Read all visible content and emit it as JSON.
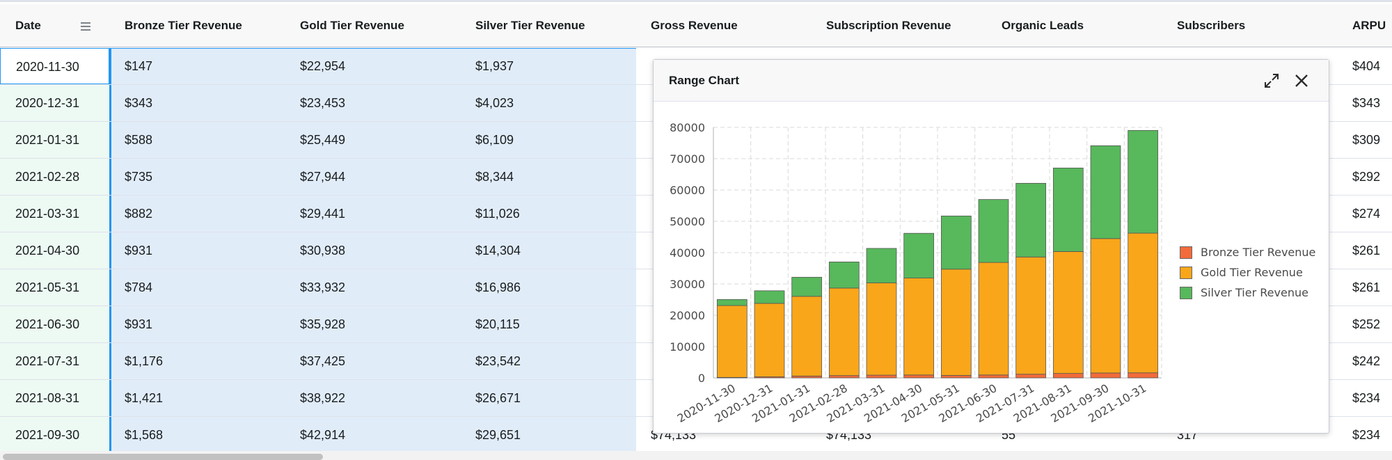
{
  "grid": {
    "columns": [
      {
        "label": "Date"
      },
      {
        "label": "Bronze Tier Revenue"
      },
      {
        "label": "Gold Tier Revenue"
      },
      {
        "label": "Silver Tier Revenue"
      },
      {
        "label": "Gross Revenue"
      },
      {
        "label": "Subscription Revenue"
      },
      {
        "label": "Organic Leads"
      },
      {
        "label": "Subscribers"
      },
      {
        "label": "ARPU"
      }
    ],
    "rows": [
      {
        "date": "2020-11-30",
        "bronze": "$147",
        "gold": "$22,954",
        "silver": "$1,937",
        "gross": "",
        "subscription": "",
        "organic": "",
        "subscribers": "",
        "arpu": "$404"
      },
      {
        "date": "2020-12-31",
        "bronze": "$343",
        "gold": "$23,453",
        "silver": "$4,023",
        "gross": "",
        "subscription": "",
        "organic": "",
        "subscribers": "",
        "arpu": "$343"
      },
      {
        "date": "2021-01-31",
        "bronze": "$588",
        "gold": "$25,449",
        "silver": "$6,109",
        "gross": "",
        "subscription": "",
        "organic": "",
        "subscribers": "",
        "arpu": "$309"
      },
      {
        "date": "2021-02-28",
        "bronze": "$735",
        "gold": "$27,944",
        "silver": "$8,344",
        "gross": "",
        "subscription": "",
        "organic": "",
        "subscribers": "",
        "arpu": "$292"
      },
      {
        "date": "2021-03-31",
        "bronze": "$882",
        "gold": "$29,441",
        "silver": "$11,026",
        "gross": "",
        "subscription": "",
        "organic": "",
        "subscribers": "",
        "arpu": "$274"
      },
      {
        "date": "2021-04-30",
        "bronze": "$931",
        "gold": "$30,938",
        "silver": "$14,304",
        "gross": "",
        "subscription": "",
        "organic": "",
        "subscribers": "",
        "arpu": "$261"
      },
      {
        "date": "2021-05-31",
        "bronze": "$784",
        "gold": "$33,932",
        "silver": "$16,986",
        "gross": "",
        "subscription": "",
        "organic": "",
        "subscribers": "",
        "arpu": "$261"
      },
      {
        "date": "2021-06-30",
        "bronze": "$931",
        "gold": "$35,928",
        "silver": "$20,115",
        "gross": "",
        "subscription": "",
        "organic": "",
        "subscribers": "",
        "arpu": "$252"
      },
      {
        "date": "2021-07-31",
        "bronze": "$1,176",
        "gold": "$37,425",
        "silver": "$23,542",
        "gross": "",
        "subscription": "",
        "organic": "",
        "subscribers": "",
        "arpu": "$242"
      },
      {
        "date": "2021-08-31",
        "bronze": "$1,421",
        "gold": "$38,922",
        "silver": "$26,671",
        "gross": "",
        "subscription": "",
        "organic": "",
        "subscribers": "",
        "arpu": "$234"
      },
      {
        "date": "2021-09-30",
        "bronze": "$1,568",
        "gold": "$42,914",
        "silver": "$29,651",
        "gross": "$74,133",
        "subscription": "$74,133",
        "organic": "55",
        "subscribers": "317",
        "arpu": "$234"
      }
    ]
  },
  "chart_panel": {
    "title": "Range Chart",
    "expand_icon": "expand-arrows-icon",
    "close_icon": "close-icon"
  },
  "chart_data": {
    "type": "bar",
    "stacked": true,
    "categories": [
      "2020-11-30",
      "2020-12-31",
      "2021-01-31",
      "2021-02-28",
      "2021-03-31",
      "2021-04-30",
      "2021-05-31",
      "2021-06-30",
      "2021-07-31",
      "2021-08-31",
      "2021-09-30",
      "2021-10-31"
    ],
    "series": [
      {
        "name": "Bronze Tier Revenue",
        "color": "#f26b3a",
        "values": [
          147,
          343,
          588,
          735,
          882,
          931,
          784,
          931,
          1176,
          1421,
          1568,
          1617
        ]
      },
      {
        "name": "Gold Tier Revenue",
        "color": "#f9a61a",
        "values": [
          22954,
          23453,
          25449,
          27944,
          29441,
          30938,
          33932,
          35928,
          37425,
          38922,
          42914,
          44600
        ]
      },
      {
        "name": "Silver Tier Revenue",
        "color": "#58b85c",
        "values": [
          1937,
          4023,
          6109,
          8344,
          11026,
          14304,
          16986,
          20115,
          23542,
          26671,
          29651,
          32800
        ]
      }
    ],
    "y_ticks": [
      "0",
      "10000",
      "20000",
      "30000",
      "40000",
      "50000",
      "60000",
      "70000",
      "80000"
    ],
    "ylim": [
      0,
      80000
    ],
    "grid": true,
    "legend_position": "right"
  }
}
